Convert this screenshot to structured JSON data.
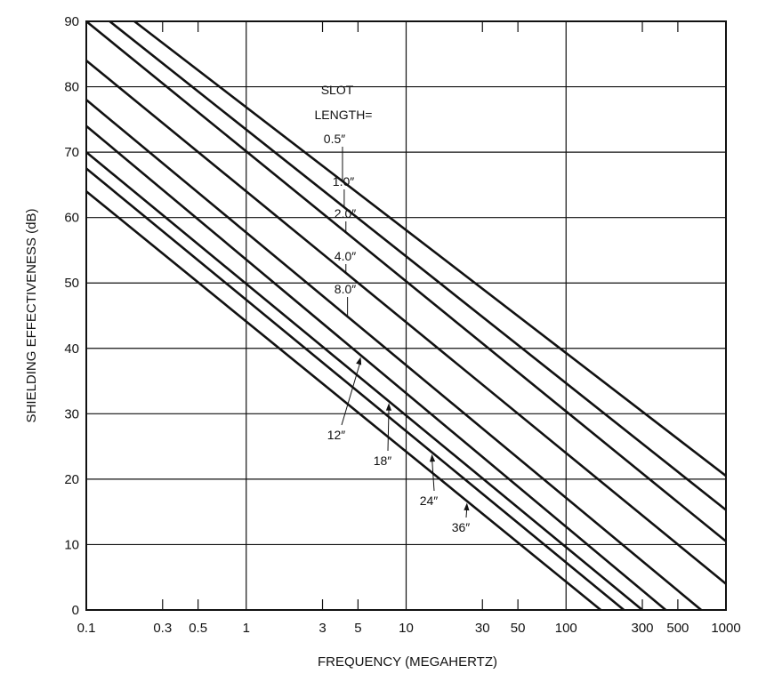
{
  "chart_data": {
    "type": "line",
    "xscale": "log",
    "xlabel": "FREQUENCY (MEGAHERTZ)",
    "ylabel": "SHIELDING EFFECTIVENESS (dB)",
    "xlim": [
      0.1,
      1000
    ],
    "ylim": [
      0,
      90
    ],
    "grid": true,
    "xticks": [
      {
        "value": 0.1,
        "label": "0.1"
      },
      {
        "value": 0.3,
        "label": "0.3"
      },
      {
        "value": 0.5,
        "label": "0.5"
      },
      {
        "value": 1,
        "label": "1"
      },
      {
        "value": 3,
        "label": "3"
      },
      {
        "value": 5,
        "label": "5"
      },
      {
        "value": 10,
        "label": "10"
      },
      {
        "value": 30,
        "label": "30"
      },
      {
        "value": 50,
        "label": "50"
      },
      {
        "value": 100,
        "label": "100"
      },
      {
        "value": 300,
        "label": "300"
      },
      {
        "value": 500,
        "label": "500"
      },
      {
        "value": 1000,
        "label": "1000"
      }
    ],
    "yticks": [
      {
        "value": 0,
        "label": "0"
      },
      {
        "value": 10,
        "label": "10"
      },
      {
        "value": 20,
        "label": "20"
      },
      {
        "value": 30,
        "label": "30"
      },
      {
        "value": 40,
        "label": "40"
      },
      {
        "value": 50,
        "label": "50"
      },
      {
        "value": 60,
        "label": "60"
      },
      {
        "value": 70,
        "label": "70"
      },
      {
        "value": 80,
        "label": "80"
      },
      {
        "value": 90,
        "label": "90"
      }
    ],
    "legend_title": [
      "SLOT",
      "LENGTH="
    ],
    "series": [
      {
        "name": "0.5″",
        "x": [
          0.2,
          1000
        ],
        "y": [
          90,
          20.5
        ]
      },
      {
        "name": "1.0″",
        "x": [
          0.14,
          1000
        ],
        "y": [
          90,
          15.3
        ]
      },
      {
        "name": "2.0″",
        "x": [
          0.1,
          1000
        ],
        "y": [
          90,
          10.5
        ]
      },
      {
        "name": "4.0″",
        "x": [
          0.1,
          1000
        ],
        "y": [
          84,
          4
        ]
      },
      {
        "name": "8.0″",
        "x": [
          0.1,
          700
        ],
        "y": [
          78,
          0
        ]
      },
      {
        "name": "12″",
        "x": [
          0.1,
          420
        ],
        "y": [
          74,
          0
        ]
      },
      {
        "name": "18″",
        "x": [
          0.1,
          300
        ],
        "y": [
          70,
          0
        ]
      },
      {
        "name": "24″",
        "x": [
          0.1,
          230
        ],
        "y": [
          67.5,
          0
        ]
      },
      {
        "name": "36″",
        "x": [
          0.1,
          165
        ],
        "y": [
          64,
          0
        ]
      }
    ]
  }
}
